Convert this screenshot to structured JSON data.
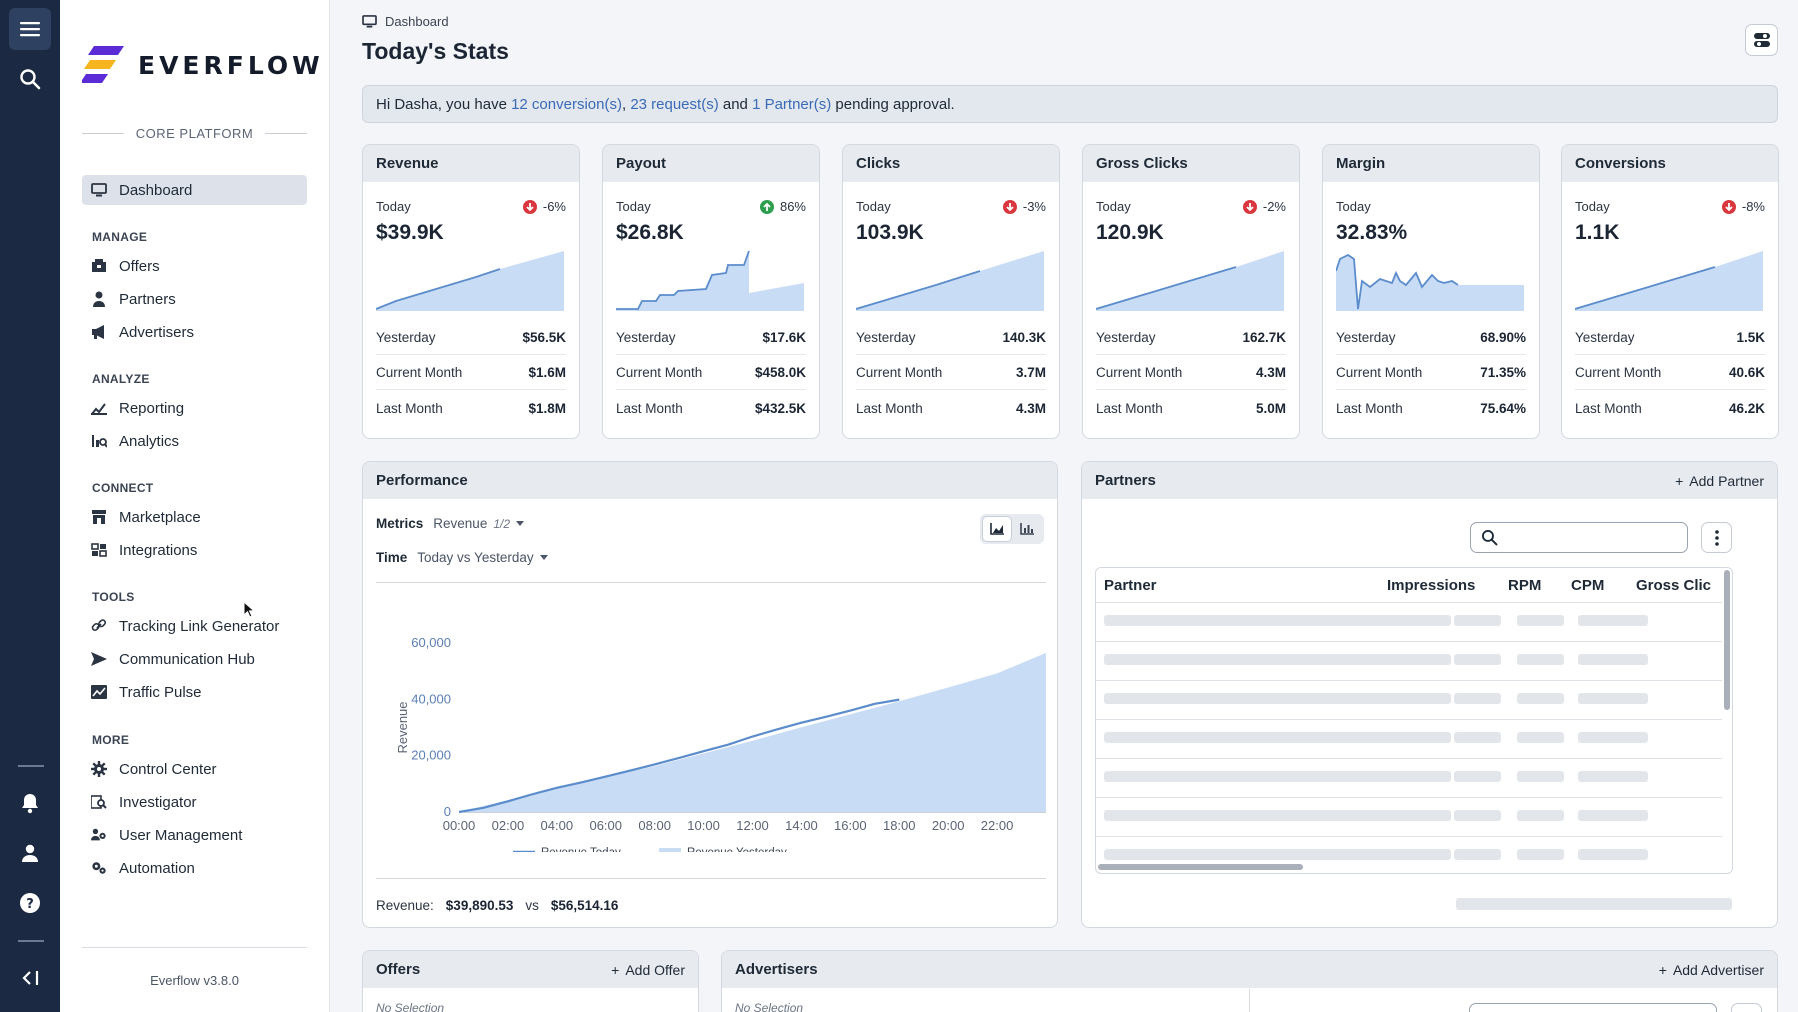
{
  "app": {
    "brand": "EVERFLOW",
    "platform_label": "CORE PLATFORM",
    "version": "Everflow v3.8.0"
  },
  "sidebar": {
    "active": "Dashboard",
    "sections": {
      "manage": "MANAGE",
      "analyze": "ANALYZE",
      "connect": "CONNECT",
      "tools": "TOOLS",
      "more": "MORE"
    },
    "items": {
      "dashboard": "Dashboard",
      "offers": "Offers",
      "partners": "Partners",
      "advertisers": "Advertisers",
      "reporting": "Reporting",
      "analytics": "Analytics",
      "marketplace": "Marketplace",
      "integrations": "Integrations",
      "tracking": "Tracking Link Generator",
      "communication": "Communication Hub",
      "traffic": "Traffic Pulse",
      "control": "Control Center",
      "investigator": "Investigator",
      "users": "User Management",
      "automation": "Automation"
    }
  },
  "header": {
    "breadcrumb": "Dashboard",
    "title": "Today's Stats"
  },
  "banner": {
    "prefix": "Hi Dasha, you have ",
    "conversions": "12 conversion(s)",
    "sep1": ", ",
    "requests": "23 request(s)",
    "sep2": " and ",
    "partners": "1 Partner(s)",
    "suffix": " pending approval."
  },
  "labels": {
    "today": "Today",
    "yesterday": "Yesterday",
    "current_month": "Current Month",
    "last_month": "Last Month"
  },
  "stats": [
    {
      "title": "Revenue",
      "pct": "-6%",
      "trend": "down",
      "today": "$39.9K",
      "yesterday": "$56.5K",
      "current_month": "$1.6M",
      "last_month": "$1.8M"
    },
    {
      "title": "Payout",
      "pct": "86%",
      "trend": "up",
      "today": "$26.8K",
      "yesterday": "$17.6K",
      "current_month": "$458.0K",
      "last_month": "$432.5K"
    },
    {
      "title": "Clicks",
      "pct": "-3%",
      "trend": "down",
      "today": "103.9K",
      "yesterday": "140.3K",
      "current_month": "3.7M",
      "last_month": "4.3M"
    },
    {
      "title": "Gross Clicks",
      "pct": "-2%",
      "trend": "down",
      "today": "120.9K",
      "yesterday": "162.7K",
      "current_month": "4.3M",
      "last_month": "5.0M"
    },
    {
      "title": "Margin",
      "pct": "",
      "trend": "none",
      "today": "32.83%",
      "yesterday": "68.90%",
      "current_month": "71.35%",
      "last_month": "75.64%"
    },
    {
      "title": "Conversions",
      "pct": "-8%",
      "trend": "down",
      "today": "1.1K",
      "yesterday": "1.5K",
      "current_month": "40.6K",
      "last_month": "46.2K"
    }
  ],
  "performance": {
    "title": "Performance",
    "metrics_label": "Metrics",
    "metrics_value": "Revenue",
    "metrics_page": "1/2",
    "time_label": "Time",
    "time_value": "Today vs Yesterday",
    "footer_label": "Revenue:",
    "footer_today": "$39,890.53",
    "footer_vs": "vs",
    "footer_yesterday": "$56,514.16"
  },
  "chart_data": {
    "type": "area",
    "ylabel": "Revenue",
    "ylim": [
      0,
      60000
    ],
    "yticks": [
      "0",
      "20,000",
      "40,000",
      "60,000"
    ],
    "yticks_values": [
      0,
      20000,
      40000,
      60000
    ],
    "xticks": [
      "00:00",
      "02:00",
      "04:00",
      "06:00",
      "08:00",
      "10:00",
      "12:00",
      "14:00",
      "16:00",
      "18:00",
      "20:00",
      "22:00"
    ],
    "xlim_hours": [
      0,
      24
    ],
    "series": [
      {
        "name": "Revenue Today",
        "kind": "line",
        "color": "#5b8ccc",
        "x": [
          0,
          1,
          2,
          3,
          4,
          5,
          6,
          7,
          8,
          9,
          10,
          11,
          12,
          13,
          14,
          15,
          16,
          17,
          18
        ],
        "y": [
          0,
          1500,
          3800,
          6300,
          8600,
          10500,
          12600,
          14700,
          16900,
          19200,
          21600,
          23900,
          26800,
          29300,
          31700,
          33800,
          36000,
          38400,
          39900
        ]
      },
      {
        "name": "Revenue Yesterday",
        "kind": "area",
        "color": "#c9dcf5",
        "x": [
          0,
          2,
          4,
          6,
          8,
          10,
          12,
          14,
          16,
          18,
          20,
          22,
          24
        ],
        "y": [
          0,
          4200,
          8600,
          12500,
          16300,
          20800,
          25300,
          30100,
          34700,
          39300,
          44200,
          49200,
          56500
        ]
      }
    ]
  },
  "partners_panel": {
    "title": "Partners",
    "add_label": "Add Partner",
    "columns": [
      "Partner",
      "Impressions",
      "RPM",
      "CPM",
      "Gross Clic"
    ]
  },
  "offers_panel": {
    "title": "Offers",
    "add_label": "Add Offer",
    "selection": "No Selection"
  },
  "advertisers_panel": {
    "title": "Advertisers",
    "add_label": "Add Advertiser",
    "selection": "No Selection"
  },
  "colors": {
    "accent_blue": "#3b6bb7",
    "down": "#d9363e",
    "up": "#2e9e4f",
    "rail": "#1b2a42"
  }
}
